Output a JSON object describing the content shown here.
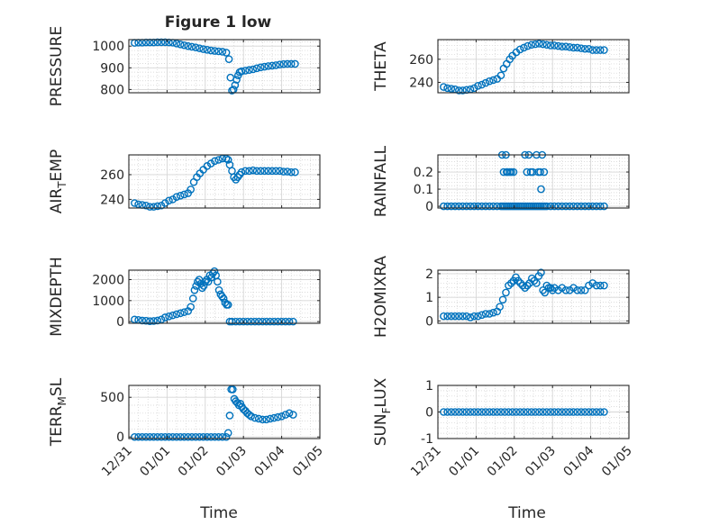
{
  "figure": {
    "title": "Figure 1 low",
    "xlabel": "Time"
  },
  "colors": {
    "marker": "#0072BD",
    "axes": "#262626",
    "grid_major": "#d6d6d6",
    "grid_minor": "#d0d0d0",
    "background": "#ffffff"
  },
  "chart_data": [
    {
      "type": "scatter",
      "title": "Figure 1 low",
      "ylabel": "PRESSURE",
      "xlabel": "",
      "x_ticklabels": [
        "12/31",
        "01/01",
        "01/02",
        "01/03",
        "01/04",
        "01/05"
      ],
      "xlim": [
        0,
        5
      ],
      "ylim": [
        785,
        1030
      ],
      "yticks": [
        800,
        900,
        1000
      ],
      "grid": true,
      "series": [
        {
          "x": [
            0.15,
            0.25,
            0.35,
            0.45,
            0.55,
            0.65,
            0.75,
            0.85,
            0.95,
            1.05,
            1.15,
            1.25,
            1.35,
            1.45,
            1.55,
            1.65,
            1.75,
            1.85,
            1.95,
            2.05,
            2.15,
            2.25,
            2.35,
            2.45,
            2.55,
            2.62,
            2.66,
            2.7,
            2.74,
            2.78,
            2.82,
            2.86,
            2.9,
            2.95,
            3.05,
            3.15,
            3.25,
            3.35,
            3.45,
            3.55,
            3.65,
            3.75,
            3.85,
            3.95,
            4.05,
            4.15,
            4.25,
            4.35
          ],
          "y": [
            1015,
            1016,
            1016,
            1017,
            1017,
            1017,
            1018,
            1018,
            1018,
            1017,
            1016,
            1012,
            1008,
            1004,
            1000,
            997,
            994,
            990,
            986,
            983,
            980,
            978,
            976,
            974,
            970,
            940,
            855,
            795,
            800,
            820,
            845,
            865,
            880,
            884,
            887,
            890,
            893,
            898,
            902,
            905,
            908,
            910,
            912,
            915,
            917,
            918,
            918,
            918
          ]
        }
      ]
    },
    {
      "type": "scatter",
      "ylabel": "THETA",
      "xlabel": "",
      "x_ticklabels": [
        "12/31",
        "01/01",
        "01/02",
        "01/03",
        "01/04",
        "01/05"
      ],
      "xlim": [
        0,
        5
      ],
      "ylim": [
        231,
        277
      ],
      "yticks": [
        240,
        260
      ],
      "grid": true,
      "series": [
        {
          "x": [
            0.15,
            0.25,
            0.35,
            0.45,
            0.55,
            0.65,
            0.75,
            0.85,
            0.95,
            1.05,
            1.15,
            1.25,
            1.35,
            1.45,
            1.55,
            1.65,
            1.72,
            1.8,
            1.88,
            1.95,
            2.05,
            2.15,
            2.25,
            2.35,
            2.45,
            2.55,
            2.65,
            2.75,
            2.85,
            2.95,
            3.05,
            3.15,
            3.25,
            3.35,
            3.45,
            3.55,
            3.65,
            3.75,
            3.85,
            3.95,
            4.05,
            4.15,
            4.25,
            4.35
          ],
          "y": [
            236,
            235,
            234.5,
            234,
            233,
            233,
            233.5,
            234,
            235,
            237,
            238,
            239.5,
            241,
            242,
            243,
            246,
            252,
            256,
            260,
            263,
            266,
            268.5,
            270,
            271.5,
            272.5,
            273,
            273.5,
            273,
            272.5,
            272,
            272,
            271.5,
            271,
            271,
            270.5,
            270,
            270,
            269.5,
            269,
            269,
            268,
            268,
            268,
            268
          ]
        }
      ]
    },
    {
      "type": "scatter",
      "ylabel": "AIR_TEMP",
      "xlabel": "",
      "x_ticklabels": [
        "12/31",
        "01/01",
        "01/02",
        "01/03",
        "01/04",
        "01/05"
      ],
      "xlim": [
        0,
        5
      ],
      "ylim": [
        233,
        276
      ],
      "yticks": [
        240,
        260
      ],
      "grid": true,
      "series": [
        {
          "x": [
            0.15,
            0.25,
            0.35,
            0.45,
            0.55,
            0.65,
            0.75,
            0.85,
            0.95,
            1.05,
            1.15,
            1.25,
            1.35,
            1.45,
            1.55,
            1.62,
            1.7,
            1.78,
            1.86,
            1.95,
            2.05,
            2.15,
            2.25,
            2.35,
            2.45,
            2.55,
            2.6,
            2.64,
            2.7,
            2.75,
            2.8,
            2.85,
            2.9,
            2.95,
            3.05,
            3.15,
            3.25,
            3.35,
            3.45,
            3.55,
            3.65,
            3.75,
            3.85,
            3.95,
            4.05,
            4.15,
            4.25,
            4.35
          ],
          "y": [
            237,
            236,
            235.5,
            235,
            234,
            234,
            234.5,
            235,
            237,
            239,
            240,
            242,
            243,
            244,
            245,
            248,
            254,
            258,
            261,
            264,
            267,
            269,
            271,
            272,
            273,
            273,
            272,
            268,
            263,
            258,
            256,
            258,
            260,
            262,
            263,
            263,
            263.5,
            263,
            263,
            263,
            263,
            263,
            263,
            263,
            262.5,
            262.5,
            262,
            262
          ]
        }
      ]
    },
    {
      "type": "scatter",
      "ylabel": "RAINFALL",
      "xlabel": "",
      "x_ticklabels": [
        "12/31",
        "01/01",
        "01/02",
        "01/03",
        "01/04",
        "01/05"
      ],
      "xlim": [
        0,
        5
      ],
      "ylim": [
        -0.01,
        0.3
      ],
      "yticks": [
        0,
        0.1,
        0.2
      ],
      "grid": true,
      "series": [
        {
          "x": [
            0.15,
            0.25,
            0.35,
            0.45,
            0.55,
            0.65,
            0.75,
            0.85,
            0.95,
            1.05,
            1.15,
            1.25,
            1.35,
            1.45,
            1.55,
            1.65,
            1.7,
            1.75,
            1.8,
            1.85,
            1.9,
            1.95,
            2.0,
            2.05,
            2.1,
            2.15,
            2.2,
            2.25,
            2.3,
            2.35,
            2.4,
            2.45,
            2.5,
            2.55,
            2.6,
            2.65,
            2.7,
            2.75,
            2.8,
            2.85,
            2.95,
            3.05,
            3.15,
            3.25,
            3.35,
            3.45,
            3.55,
            3.65,
            3.75,
            3.85,
            3.95,
            4.05,
            4.15,
            4.25,
            4.35,
            1.68,
            1.72,
            1.78,
            1.82,
            1.88,
            1.92,
            1.98,
            2.28,
            2.33,
            2.38,
            2.43,
            2.48,
            2.58,
            2.63,
            2.68,
            2.73,
            2.78,
            2.7,
            1.8
          ],
          "y": [
            0,
            0,
            0,
            0,
            0,
            0,
            0,
            0,
            0,
            0,
            0,
            0,
            0,
            0,
            0,
            0,
            0,
            0,
            0,
            0,
            0,
            0,
            0,
            0,
            0,
            0,
            0,
            0,
            0,
            0,
            0,
            0,
            0,
            0,
            0,
            0,
            0,
            0,
            0,
            0,
            0,
            0,
            0,
            0,
            0,
            0,
            0,
            0,
            0,
            0,
            0,
            0,
            0,
            0,
            0,
            0.3,
            0.2,
            0.3,
            0.2,
            0.2,
            0.2,
            0.2,
            0.3,
            0.2,
            0.3,
            0.2,
            0.2,
            0.3,
            0.2,
            0.2,
            0.3,
            0.2,
            0.1,
            0.2
          ]
        }
      ]
    },
    {
      "type": "scatter",
      "ylabel": "MIXDEPTH",
      "xlabel": "",
      "x_ticklabels": [
        "12/31",
        "01/01",
        "01/02",
        "01/03",
        "01/04",
        "01/05"
      ],
      "xlim": [
        0,
        5
      ],
      "ylim": [
        -80,
        2450
      ],
      "yticks": [
        0,
        1000,
        2000
      ],
      "grid": true,
      "series": [
        {
          "x": [
            0.15,
            0.25,
            0.35,
            0.45,
            0.55,
            0.65,
            0.75,
            0.85,
            0.95,
            1.05,
            1.15,
            1.25,
            1.35,
            1.45,
            1.55,
            1.62,
            1.68,
            1.72,
            1.76,
            1.8,
            1.84,
            1.88,
            1.92,
            1.96,
            2.0,
            2.04,
            2.08,
            2.12,
            2.16,
            2.2,
            2.24,
            2.28,
            2.32,
            2.36,
            2.4,
            2.44,
            2.48,
            2.52,
            2.56,
            2.6,
            2.64,
            2.7,
            2.8,
            2.9,
            3.0,
            3.1,
            3.2,
            3.3,
            3.4,
            3.5,
            3.6,
            3.7,
            3.8,
            3.9,
            4.0,
            4.1,
            4.2,
            4.3
          ],
          "y": [
            100,
            80,
            50,
            40,
            20,
            30,
            50,
            100,
            200,
            250,
            300,
            350,
            400,
            450,
            500,
            700,
            1100,
            1500,
            1700,
            1900,
            2000,
            1800,
            1600,
            1700,
            1900,
            2000,
            1900,
            2200,
            2100,
            2300,
            2400,
            2200,
            1900,
            1500,
            1300,
            1200,
            1100,
            900,
            800,
            800,
            0,
            0,
            0,
            0,
            0,
            0,
            0,
            0,
            0,
            0,
            0,
            0,
            0,
            0,
            0,
            0,
            0,
            0
          ]
        }
      ]
    },
    {
      "type": "scatter",
      "ylabel": "H2OMIXRA",
      "xlabel": "",
      "x_ticklabels": [
        "12/31",
        "01/01",
        "01/02",
        "01/03",
        "01/04",
        "01/05"
      ],
      "xlim": [
        0,
        5
      ],
      "ylim": [
        -0.1,
        2.15
      ],
      "yticks": [
        0,
        1,
        2
      ],
      "grid": true,
      "series": [
        {
          "x": [
            0.15,
            0.25,
            0.35,
            0.45,
            0.55,
            0.65,
            0.75,
            0.85,
            0.95,
            1.05,
            1.15,
            1.25,
            1.35,
            1.45,
            1.55,
            1.62,
            1.7,
            1.78,
            1.85,
            1.92,
            1.98,
            2.04,
            2.1,
            2.16,
            2.22,
            2.28,
            2.34,
            2.4,
            2.46,
            2.52,
            2.58,
            2.64,
            2.7,
            2.75,
            2.8,
            2.85,
            2.9,
            2.95,
            3.0,
            3.05,
            3.15,
            3.25,
            3.35,
            3.45,
            3.55,
            3.65,
            3.75,
            3.85,
            3.95,
            4.05,
            4.15,
            4.25,
            4.35
          ],
          "y": [
            0.2,
            0.2,
            0.2,
            0.2,
            0.2,
            0.2,
            0.2,
            0.15,
            0.2,
            0.2,
            0.25,
            0.3,
            0.3,
            0.35,
            0.4,
            0.6,
            0.9,
            1.2,
            1.5,
            1.6,
            1.7,
            1.85,
            1.7,
            1.6,
            1.5,
            1.4,
            1.5,
            1.6,
            1.8,
            1.7,
            1.6,
            1.9,
            2.05,
            1.3,
            1.2,
            1.5,
            1.4,
            1.4,
            1.3,
            1.4,
            1.3,
            1.4,
            1.3,
            1.3,
            1.4,
            1.3,
            1.3,
            1.3,
            1.5,
            1.6,
            1.5,
            1.5,
            1.5
          ]
        }
      ]
    },
    {
      "type": "scatter",
      "ylabel": "TERR_MSL",
      "xlabel": "Time",
      "x_ticklabels": [
        "12/31",
        "01/01",
        "01/02",
        "01/03",
        "01/04",
        "01/05"
      ],
      "xlim": [
        0,
        5
      ],
      "ylim": [
        -20,
        650
      ],
      "yticks": [
        0,
        500
      ],
      "grid": true,
      "series": [
        {
          "x": [
            0.15,
            0.25,
            0.35,
            0.45,
            0.55,
            0.65,
            0.75,
            0.85,
            0.95,
            1.05,
            1.15,
            1.25,
            1.35,
            1.45,
            1.55,
            1.65,
            1.75,
            1.85,
            1.95,
            2.05,
            2.15,
            2.25,
            2.35,
            2.45,
            2.55,
            2.6,
            2.64,
            2.68,
            2.72,
            2.76,
            2.8,
            2.84,
            2.88,
            2.92,
            2.96,
            3.0,
            3.05,
            3.1,
            3.15,
            3.2,
            3.3,
            3.4,
            3.5,
            3.6,
            3.7,
            3.8,
            3.9,
            4.0,
            4.1,
            4.2,
            4.3
          ],
          "y": [
            0,
            0,
            0,
            0,
            0,
            0,
            0,
            0,
            0,
            0,
            0,
            0,
            0,
            0,
            0,
            0,
            0,
            0,
            0,
            0,
            0,
            0,
            0,
            0,
            0,
            50,
            270,
            600,
            600,
            480,
            450,
            430,
            400,
            420,
            380,
            350,
            330,
            300,
            280,
            260,
            240,
            230,
            220,
            220,
            230,
            240,
            250,
            260,
            280,
            300,
            280
          ]
        }
      ]
    },
    {
      "type": "scatter",
      "ylabel": "SUN_FLUX",
      "xlabel": "Time",
      "x_ticklabels": [
        "12/31",
        "01/01",
        "01/02",
        "01/03",
        "01/04",
        "01/05"
      ],
      "xlim": [
        0,
        5
      ],
      "ylim": [
        -1,
        1
      ],
      "yticks": [
        -1,
        0,
        1
      ],
      "grid": true,
      "series": [
        {
          "x": [
            0.15,
            0.25,
            0.35,
            0.45,
            0.55,
            0.65,
            0.75,
            0.85,
            0.95,
            1.05,
            1.15,
            1.25,
            1.35,
            1.45,
            1.55,
            1.65,
            1.75,
            1.85,
            1.95,
            2.05,
            2.15,
            2.25,
            2.35,
            2.45,
            2.55,
            2.65,
            2.75,
            2.85,
            2.95,
            3.05,
            3.15,
            3.25,
            3.35,
            3.45,
            3.55,
            3.65,
            3.75,
            3.85,
            3.95,
            4.05,
            4.15,
            4.25,
            4.35
          ],
          "y": [
            0,
            0,
            0,
            0,
            0,
            0,
            0,
            0,
            0,
            0,
            0,
            0,
            0,
            0,
            0,
            0,
            0,
            0,
            0,
            0,
            0,
            0,
            0,
            0,
            0,
            0,
            0,
            0,
            0,
            0,
            0,
            0,
            0,
            0,
            0,
            0,
            0,
            0,
            0,
            0,
            0,
            0,
            0
          ]
        }
      ]
    }
  ]
}
